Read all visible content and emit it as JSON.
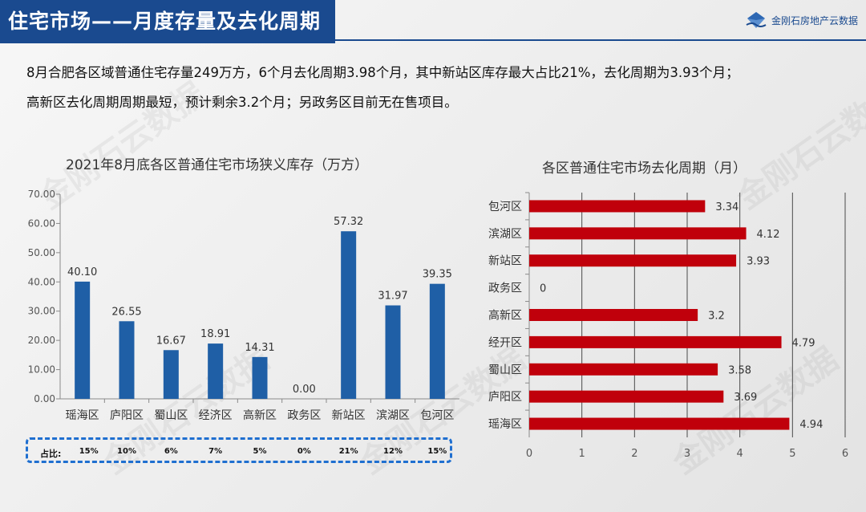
{
  "header": {
    "title": "住宅市场——月度存量及去化周期",
    "logo_text": "金刚石房地产云数据"
  },
  "summary": {
    "line1": "8月合肥各区域普通住宅存量249万方，6个月去化周期3.98个月，其中新站区库存最大占比21%，去化周期为3.93个月；",
    "line2": "高新区去化周期周期最短，预计剩余3.2个月；另政务区目前无在售项目。"
  },
  "share": {
    "label": "占比:",
    "values": [
      "15%",
      "10%",
      "6%",
      "7%",
      "5%",
      "0%",
      "21%",
      "12%",
      "15%"
    ]
  },
  "watermark": "金刚石云数据",
  "colors": {
    "bar": "#1f5fa6",
    "hbar": "#c0000b",
    "header": "#1a4a8f"
  },
  "chart_data": [
    {
      "type": "bar",
      "title": "2021年8月底各区普通住宅市场狭义库存（万方）",
      "categories": [
        "瑶海区",
        "庐阳区",
        "蜀山区",
        "经济区",
        "高新区",
        "政务区",
        "新站区",
        "滨湖区",
        "包河区"
      ],
      "values": [
        40.1,
        26.55,
        16.67,
        18.91,
        14.31,
        0.0,
        57.32,
        31.97,
        39.35
      ],
      "data_labels": [
        "40.10",
        "26.55",
        "16.67",
        "18.91",
        "14.31",
        "0.00",
        "57.32",
        "31.97",
        "39.35"
      ],
      "ylim": [
        0,
        70
      ],
      "yticks": [
        "0.00",
        "10.00",
        "20.00",
        "30.00",
        "40.00",
        "50.00",
        "60.00",
        "70.00"
      ],
      "grid": false
    },
    {
      "type": "bar",
      "orientation": "horizontal",
      "title": "各区普通住宅市场去化周期（月）",
      "categories": [
        "包河区",
        "滨湖区",
        "新站区",
        "政务区",
        "高新区",
        "经开区",
        "蜀山区",
        "庐阳区",
        "瑶海区"
      ],
      "values": [
        3.34,
        4.12,
        3.93,
        0,
        3.2,
        4.79,
        3.58,
        3.69,
        4.94
      ],
      "data_labels": [
        "3.34",
        "4.12",
        "3.93",
        "0",
        "3.2",
        "4.79",
        "3.58",
        "3.69",
        "4.94"
      ],
      "xlim": [
        0,
        6
      ],
      "xticks": [
        "0",
        "1",
        "2",
        "3",
        "4",
        "5",
        "6"
      ],
      "grid": true
    }
  ]
}
